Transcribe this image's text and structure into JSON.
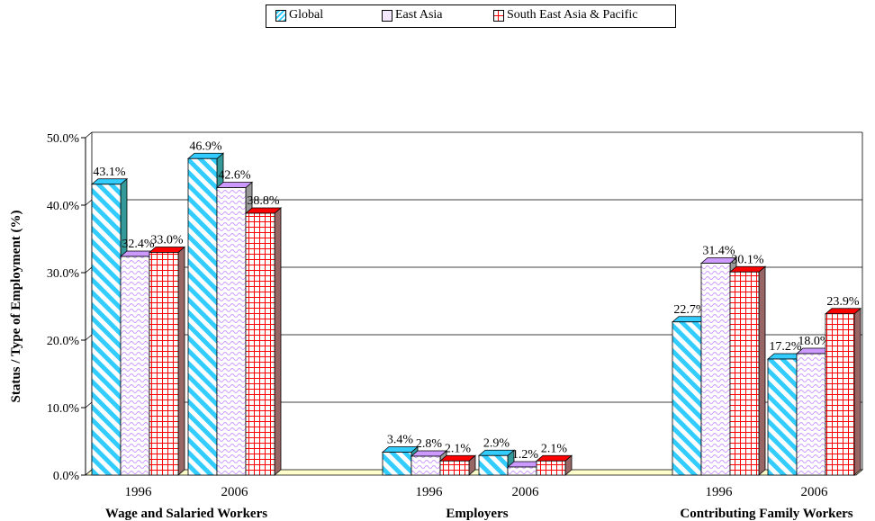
{
  "chart_data": {
    "type": "bar",
    "ylabel": "Status / Type of Employment (%)",
    "ylim": [
      0,
      50
    ],
    "yticks": [
      "0.0%",
      "10.0%",
      "20.0%",
      "30.0%",
      "40.0%",
      "50.0%"
    ],
    "groups": [
      {
        "label": "Wage and Salaried Workers",
        "years": [
          "1996",
          "2006"
        ]
      },
      {
        "label": "Employers",
        "years": [
          "1996",
          "2006"
        ]
      },
      {
        "label": "Contributing Family Workers",
        "years": [
          "1996",
          "2006"
        ]
      }
    ],
    "series": [
      {
        "name": "Global",
        "color": "#33ccff",
        "pattern": "diagonal-stripes",
        "values": [
          43.1,
          46.9,
          3.4,
          2.9,
          22.7,
          17.2
        ],
        "labels": [
          "43.1%",
          "46.9%",
          "3.4%",
          "2.9%",
          "22.7%",
          "17.2%"
        ]
      },
      {
        "name": "East Asia",
        "color": "#cc99ff",
        "pattern": "wave",
        "values": [
          32.4,
          42.6,
          2.8,
          1.2,
          31.4,
          18.0
        ],
        "labels": [
          "32.4%",
          "42.6%",
          "2.8%",
          "1.2%",
          "31.4%",
          "18.0%"
        ]
      },
      {
        "name": "South East Asia & Pacific",
        "color": "#ff0000",
        "pattern": "grid",
        "values": [
          33.0,
          38.8,
          2.1,
          2.1,
          30.1,
          23.9
        ],
        "labels": [
          "33.0%",
          "38.8%",
          "2.1%",
          "2.1%",
          "30.1%",
          "23.9%"
        ]
      }
    ],
    "grid": true,
    "legend": "top-center",
    "floor_color": "#ffffcc"
  }
}
